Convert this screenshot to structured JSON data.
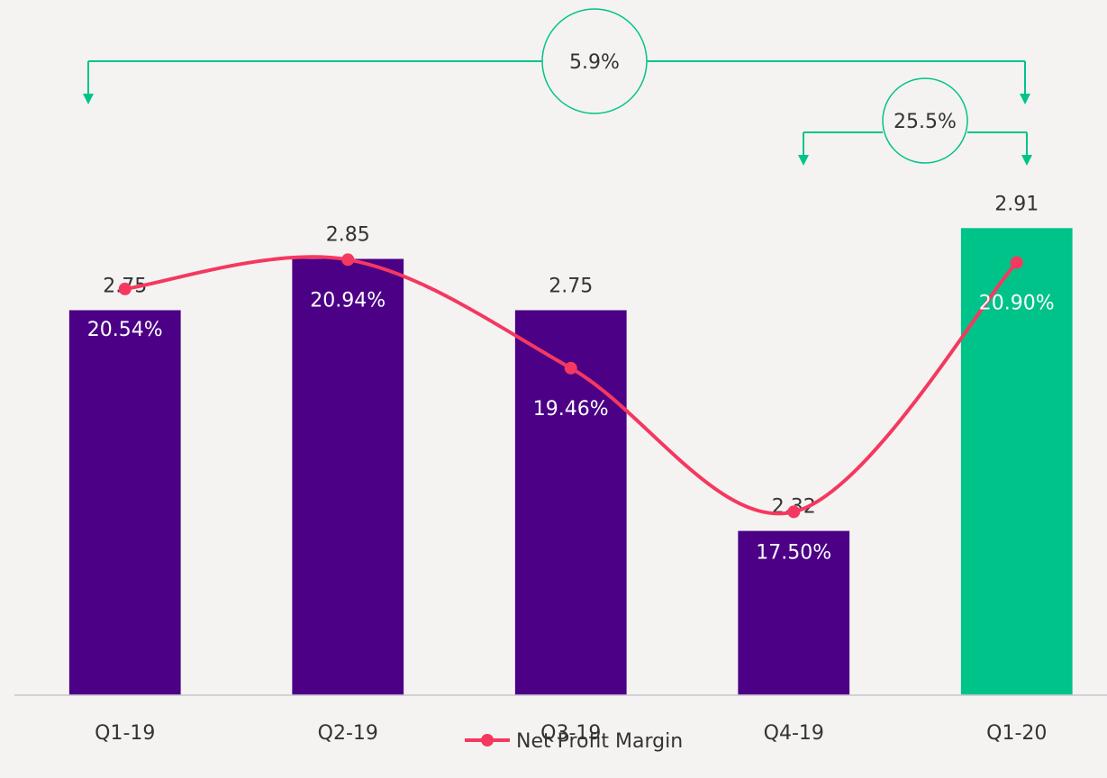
{
  "chart_data": {
    "type": "bar_line",
    "categories": [
      "Q1-19",
      "Q2-19",
      "Q3-19",
      "Q4-19",
      "Q1-20"
    ],
    "series": [
      {
        "type": "bar",
        "values": [
          2.75,
          2.85,
          2.75,
          2.32,
          2.91
        ],
        "colors": [
          "#4b0086",
          "#4b0086",
          "#4b0086",
          "#4b0086",
          "#00c389"
        ]
      },
      {
        "type": "line",
        "name": "Net Profit Margin",
        "color": "#f5385f",
        "axis": "y2",
        "smooth": true,
        "values": [
          20.54,
          20.94,
          19.46,
          17.5,
          20.9
        ],
        "value_labels": [
          "20.54%",
          "20.94%",
          "19.46%",
          "17.50%",
          "20.90%"
        ]
      }
    ],
    "ylim": [
      2.0,
      3.3
    ],
    "y2lim": [
      15.0,
      24.1
    ],
    "annotations": [
      {
        "text": "5.9%"
      },
      {
        "text": "25.5%"
      }
    ],
    "legend": "bottom"
  }
}
